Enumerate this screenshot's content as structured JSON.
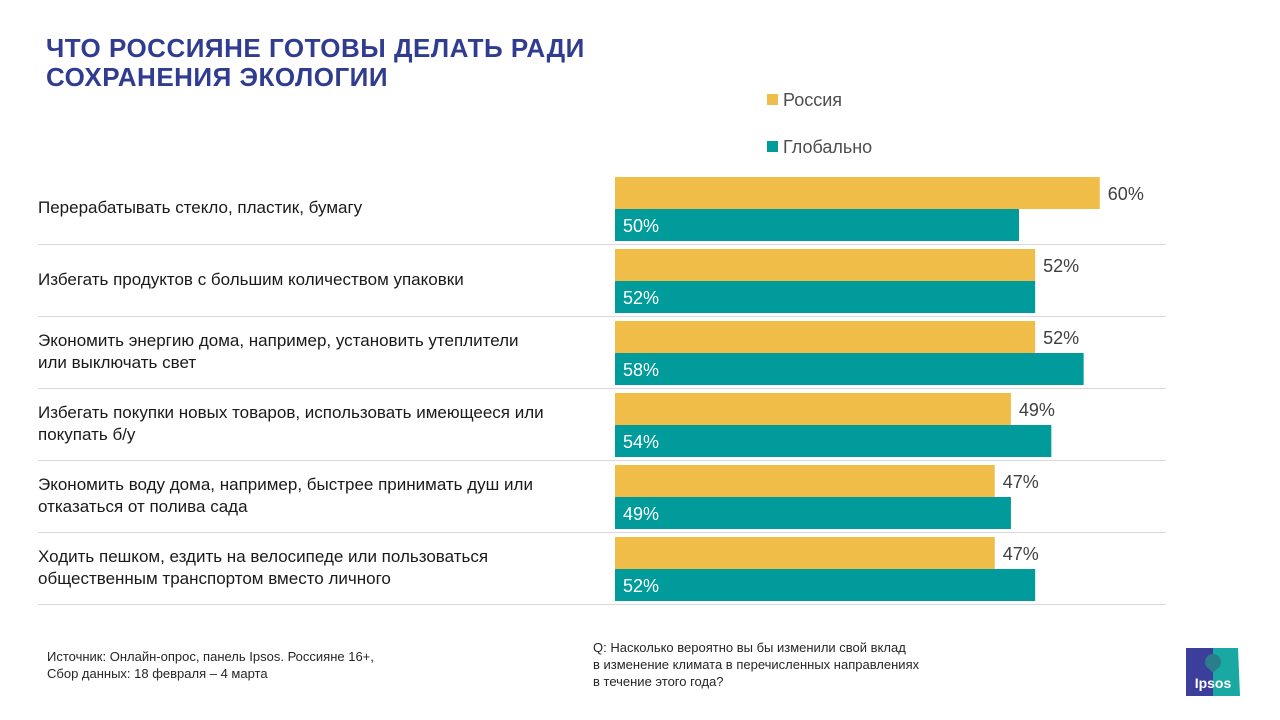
{
  "title": {
    "line1": "ЧТО РОССИЯНЕ ГОТОВЫ ДЕЛАТЬ РАДИ",
    "line2": "СОХРАНЕНИЯ ЭКОЛОГИИ"
  },
  "colors": {
    "russia": "#f0bd48",
    "global": "#009b9a",
    "title": "#2f3c8f"
  },
  "chart_data": {
    "type": "bar",
    "orientation": "horizontal",
    "title": "ЧТО РОССИЯНЕ ГОТОВЫ ДЕЛАТЬ РАДИ СОХРАНЕНИЯ ЭКОЛОГИИ",
    "xlabel": "",
    "ylabel": "",
    "xlim": [
      0,
      100
    ],
    "grid": false,
    "legend_position": "top-right",
    "categories": [
      [
        "Перерабатывать стекло, пластик,  бумагу"
      ],
      [
        "Избегать продуктов с большим количеством упаковки"
      ],
      [
        "Экономить энергию дома, например,  установить утеплители",
        "или выключать свет"
      ],
      [
        "Избегать покупки  новых товаров, использовать имеющееся или",
        "покупать  б/у"
      ],
      [
        "Экономить воду дома, например,  быстрее принимать душ или",
        "отказаться от полива  сада"
      ],
      [
        "Ходить пешком,  ездить на  велосипеде или  пользоваться",
        "общественным транспортом вместо личного"
      ]
    ],
    "series": [
      {
        "name": "Россия",
        "values": [
          60,
          52,
          52,
          49,
          47,
          47
        ],
        "labels": [
          "60%",
          "52%",
          "52%",
          "49%",
          "47%",
          "47%"
        ]
      },
      {
        "name": "Глобально",
        "values": [
          50,
          52,
          58,
          54,
          49,
          52
        ],
        "labels": [
          "50%",
          "52%",
          "58%",
          "54%",
          "49%",
          "52%"
        ]
      }
    ]
  },
  "footer": {
    "source_line1": "Источник: Онлайн-опрос, панель Ipsos. Россияне 16+,",
    "source_line2": "Сбор данных: 18 февраля  – 4 марта",
    "question_line1": "Q: Насколько вероятно вы бы изменили свой вклад",
    "question_line2": "в изменение климата в перечисленных направлениях",
    "question_line3": "в течение этого года?"
  },
  "logo": {
    "text": "Ipsos"
  }
}
